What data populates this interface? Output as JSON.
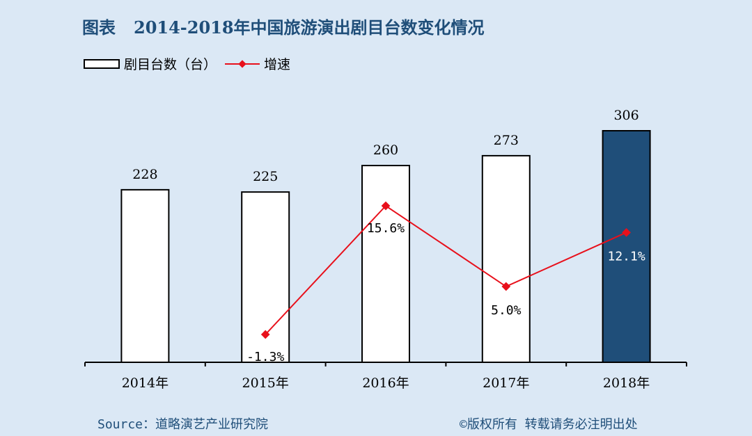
{
  "header": {
    "label": "图表",
    "title": "2014-2018年中国旅游演出剧目台数变化情况"
  },
  "legend": {
    "bar_label": "剧目台数（台）",
    "line_label": "增速"
  },
  "footer": {
    "source": "Source：道略演艺产业研究院",
    "copyright": "©版权所有    转载请务必注明出处"
  },
  "colors": {
    "background": "#dbe8f5",
    "title": "#1f4e79",
    "bar_fill": "#ffffff",
    "bar_highlight": "#1f4e79",
    "line": "#e8101b"
  },
  "chart_data": {
    "type": "bar",
    "categories": [
      "2014年",
      "2015年",
      "2016年",
      "2017年",
      "2018年"
    ],
    "series": [
      {
        "name": "剧目台数（台）",
        "type": "bar",
        "values": [
          228,
          225,
          260,
          273,
          306
        ],
        "labels": [
          "228",
          "225",
          "260",
          "273",
          "306"
        ]
      },
      {
        "name": "增速",
        "type": "line",
        "values": [
          null,
          -1.3,
          15.6,
          5.0,
          12.1
        ],
        "labels": [
          "",
          "-1.3%",
          "15.6%",
          "5.0%",
          "12.1%"
        ]
      }
    ],
    "title": "2014-2018年中国旅游演出剧目台数变化情况",
    "highlight_index": 4,
    "legend_position": "top-left",
    "grid": false
  }
}
